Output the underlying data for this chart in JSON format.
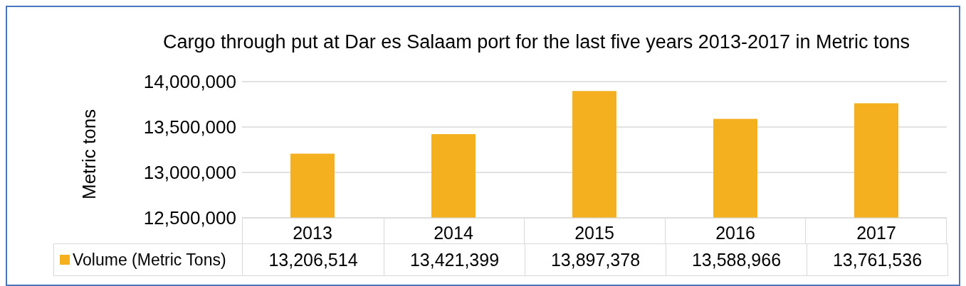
{
  "chart_data": {
    "type": "bar",
    "title": "Cargo through put at Dar es Salaam port for the last five years 2013-2017 in Metric tons",
    "ylabel": "Metric tons",
    "categories": [
      "2013",
      "2014",
      "2015",
      "2016",
      "2017"
    ],
    "series": [
      {
        "name": "Volume (Metric Tons)",
        "color": "#f5b01f",
        "values": [
          13206514,
          13421399,
          13897378,
          13588966,
          13761536
        ],
        "value_labels": [
          "13,206,514",
          "13,421,399",
          "13,897,378",
          "13,588,966",
          "13,761,536"
        ]
      }
    ],
    "ylim": [
      12500000,
      14000000
    ],
    "yticks": [
      {
        "value": 12500000,
        "label": "12,500,000"
      },
      {
        "value": 13000000,
        "label": "13,000,000"
      },
      {
        "value": 13500000,
        "label": "13,500,000"
      },
      {
        "value": 14000000,
        "label": "14,000,000"
      }
    ],
    "grid": "y",
    "legend": "bottom"
  }
}
